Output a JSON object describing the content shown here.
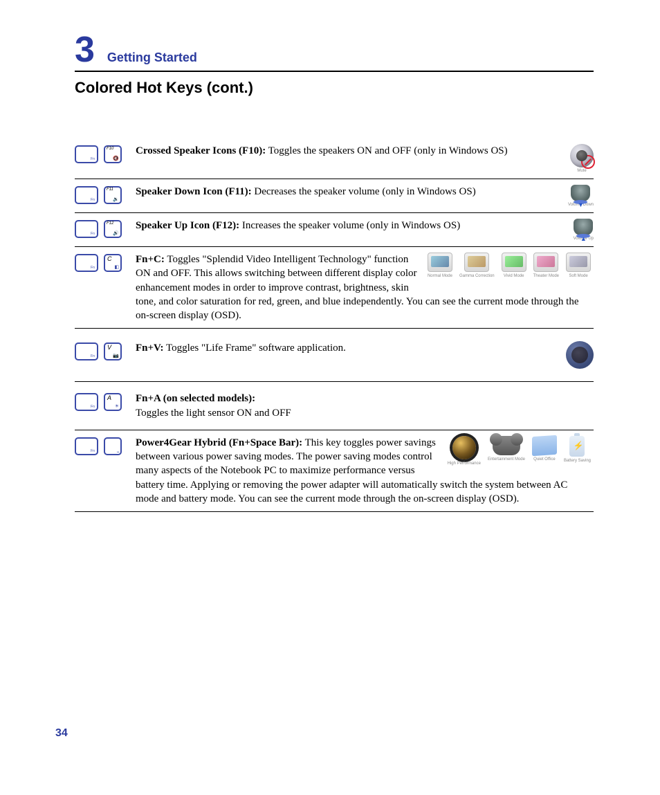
{
  "page": {
    "chapter_number": "3",
    "chapter_title": "Getting Started",
    "section_title": "Colored Hot Keys (cont.)",
    "page_number": "34"
  },
  "colors": {
    "brand_blue": "#2a3a9e",
    "key_border": "#3a4aa8"
  },
  "rows": [
    {
      "key1": "Fn",
      "key2_top": "F10",
      "title": "Crossed Speaker Icons (F10):",
      "body": " Toggles the speakers ON and OFF (only in Windows OS)",
      "right_caption": "Mute"
    },
    {
      "key1": "Fn",
      "key2_top": "F11",
      "title": "Speaker Down Icon (F11):",
      "body": " Decreases the speaker volume (only in Windows OS)",
      "right_caption": "Volume Down"
    },
    {
      "key1": "Fn",
      "key2_top": "F12",
      "title": "Speaker Up Icon (F12):",
      "body": " Increases the speaker volume (only in Windows OS)",
      "right_caption": "Volume Up"
    },
    {
      "key1": "Fn",
      "key2_letter": "C",
      "title": "Fn+C:",
      "body": " Toggles \"Splendid Video Intelligent Technology\" function ON and OFF. This allows switching between different display color enhancement modes in order to improve contrast, brightness, skin tone, and color saturation for red, green, and blue independently. You can see the current mode through the on-screen display (OSD).",
      "mode_captions": [
        "Normal Mode",
        "Gamma Correction",
        "Vivid Mode",
        "Theater Mode",
        "Soft Mode"
      ]
    },
    {
      "key1": "Fn",
      "key2_letter": "V",
      "title": "Fn+V:",
      "body": " Toggles \"Life Frame\" software application."
    },
    {
      "key1": "Fn",
      "key2_letter": "A",
      "title": "Fn+A (on selected models):",
      "body": " Toggles the light sensor ON and OFF"
    },
    {
      "key1": "Fn",
      "key2_letter": " ",
      "title": "Power4Gear Hybrid (Fn+Space Bar):",
      "body": " This key toggles power savings between various power saving modes. The power saving modes control many aspects of the Notebook PC to maximize performance versus battery time. Applying or removing the power adapter will automatically switch the system between AC mode and battery mode. You can see the current mode through the on-screen display (OSD).",
      "mode_captions": [
        "High Performance",
        "Entertainment Mode",
        "Quiet Office",
        "Battery Saving"
      ]
    }
  ]
}
